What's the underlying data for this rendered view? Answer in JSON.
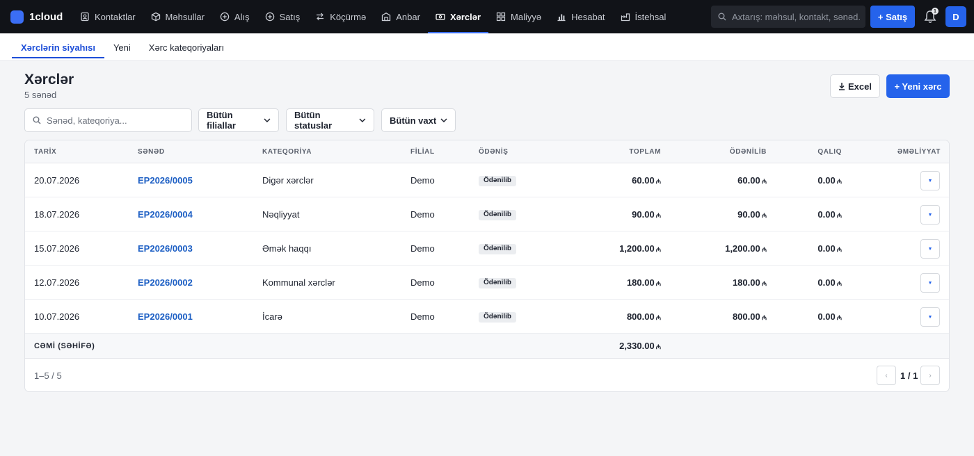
{
  "app": {
    "name": "1cloud"
  },
  "nav": [
    {
      "label": "Kontaktlar",
      "icon": "contacts-icon",
      "active": false
    },
    {
      "label": "Məhsullar",
      "icon": "box-icon",
      "active": false
    },
    {
      "label": "Alış",
      "icon": "plus-circle-icon",
      "active": false
    },
    {
      "label": "Satış",
      "icon": "plus-circle-icon",
      "active": false
    },
    {
      "label": "Köçürmə",
      "icon": "transfer-icon",
      "active": false
    },
    {
      "label": "Anbar",
      "icon": "warehouse-icon",
      "active": false
    },
    {
      "label": "Xərclər",
      "icon": "cash-icon",
      "active": true
    },
    {
      "label": "Maliyyə",
      "icon": "grid-icon",
      "active": false
    },
    {
      "label": "Hesabat",
      "icon": "bar-chart-icon",
      "active": false
    },
    {
      "label": "İstehsal",
      "icon": "factory-icon",
      "active": false
    }
  ],
  "search": {
    "placeholder": "Axtarış: məhsul, kontakt, sənəd..."
  },
  "topbar": {
    "sale_button": "+ Satış",
    "notifications_count": "1",
    "avatar": "D"
  },
  "subnav": [
    {
      "label": "Xərclərin siyahısı",
      "active": true
    },
    {
      "label": "Yeni",
      "active": false
    },
    {
      "label": "Xərc kateqoriyaları",
      "active": false
    }
  ],
  "page": {
    "title": "Xərclər",
    "subtitle": "5 sənəd",
    "excel_button": "Excel",
    "new_button": "+ Yeni xərc"
  },
  "filters": {
    "search_placeholder": "Sənəd, kateqoriya...",
    "branch": "Bütün filiallar",
    "status": "Bütün statuslar",
    "time": "Bütün vaxt"
  },
  "table": {
    "headers": {
      "date": "TARİX",
      "document": "SƏNƏD",
      "category": "KATEQORİYA",
      "branch": "FİLİAL",
      "payment": "ÖDƏNİŞ",
      "total": "TOPLAM",
      "paid": "ÖDƏNİLİB",
      "remaining": "QALIQ",
      "actions": "ƏMƏLİYYAT"
    },
    "currency_symbol": "₼",
    "rows": [
      {
        "date": "20.07.2026",
        "document": "EP2026/0005",
        "category": "Digər xərclər",
        "branch": "Demo",
        "payment": "Ödənilib",
        "total": "60.00",
        "paid": "60.00",
        "remaining": "0.00"
      },
      {
        "date": "18.07.2026",
        "document": "EP2026/0004",
        "category": "Nəqliyyat",
        "branch": "Demo",
        "payment": "Ödənilib",
        "total": "90.00",
        "paid": "90.00",
        "remaining": "0.00"
      },
      {
        "date": "15.07.2026",
        "document": "EP2026/0003",
        "category": "Əmək haqqı",
        "branch": "Demo",
        "payment": "Ödənilib",
        "total": "1,200.00",
        "paid": "1,200.00",
        "remaining": "0.00"
      },
      {
        "date": "12.07.2026",
        "document": "EP2026/0002",
        "category": "Kommunal xərclər",
        "branch": "Demo",
        "payment": "Ödənilib",
        "total": "180.00",
        "paid": "180.00",
        "remaining": "0.00"
      },
      {
        "date": "10.07.2026",
        "document": "EP2026/0001",
        "category": "İcarə",
        "branch": "Demo",
        "payment": "Ödənilib",
        "total": "800.00",
        "paid": "800.00",
        "remaining": "0.00"
      }
    ],
    "total_label": "CƏMİ (SƏHİFƏ)",
    "total_value": "2,330.00"
  },
  "pagination": {
    "range": "1–5 / 5",
    "page": "1 / 1"
  },
  "colors": {
    "accent": "#2563eb",
    "topbar": "#111318",
    "link": "#1d5fc4"
  }
}
